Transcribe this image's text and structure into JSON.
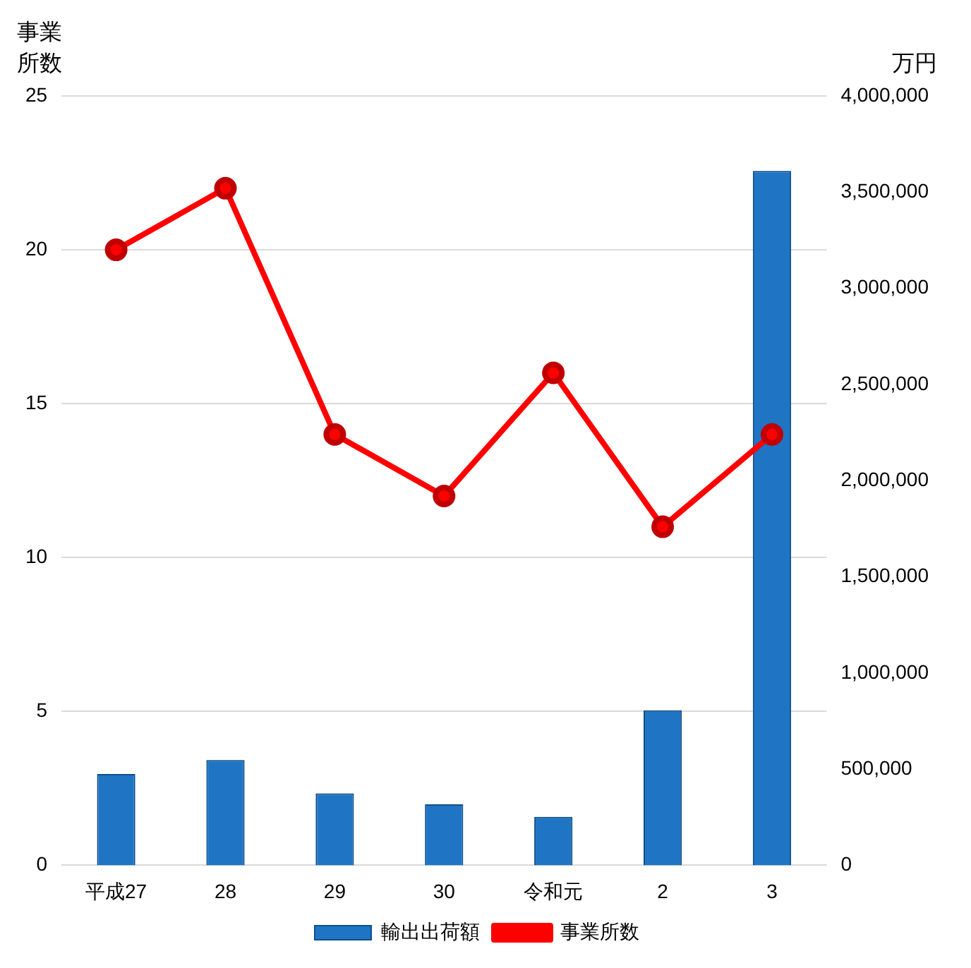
{
  "chart_data": {
    "type": "bar",
    "ylabel": "事業所数",
    "y2label": "万円",
    "categories": [
      "平成27",
      "28",
      "29",
      "30",
      "令和元",
      "2",
      "3"
    ],
    "series": [
      {
        "name": "輸出出荷額",
        "axis": "y2",
        "color": "#1f74c4",
        "values": [
          475000,
          547000,
          374000,
          317000,
          252000,
          806000,
          3610000
        ]
      },
      {
        "name": "事業所数",
        "type": "line",
        "axis": "y",
        "color": "#ff0000",
        "marker": "circle",
        "values": [
          20,
          22,
          14,
          12,
          16,
          11,
          14
        ]
      }
    ],
    "ylim": [
      0,
      25
    ],
    "yticks": [
      0,
      5,
      10,
      15,
      20,
      25
    ],
    "y2lim": [
      0,
      4000000
    ],
    "y2ticks": [
      {
        "value": 0,
        "label": "0"
      },
      {
        "value": 500000,
        "label": "500,000"
      },
      {
        "value": 1000000,
        "label": "1,000,000"
      },
      {
        "value": 1500000,
        "label": "1,500,000"
      },
      {
        "value": 2000000,
        "label": "2,000,000"
      },
      {
        "value": 2500000,
        "label": "2,500,000"
      },
      {
        "value": 3000000,
        "label": "3,000,000"
      },
      {
        "value": 3500000,
        "label": "3,500,000"
      },
      {
        "value": 4000000,
        "label": "4,000,000"
      }
    ],
    "grid": "y",
    "legend": "bottom"
  }
}
